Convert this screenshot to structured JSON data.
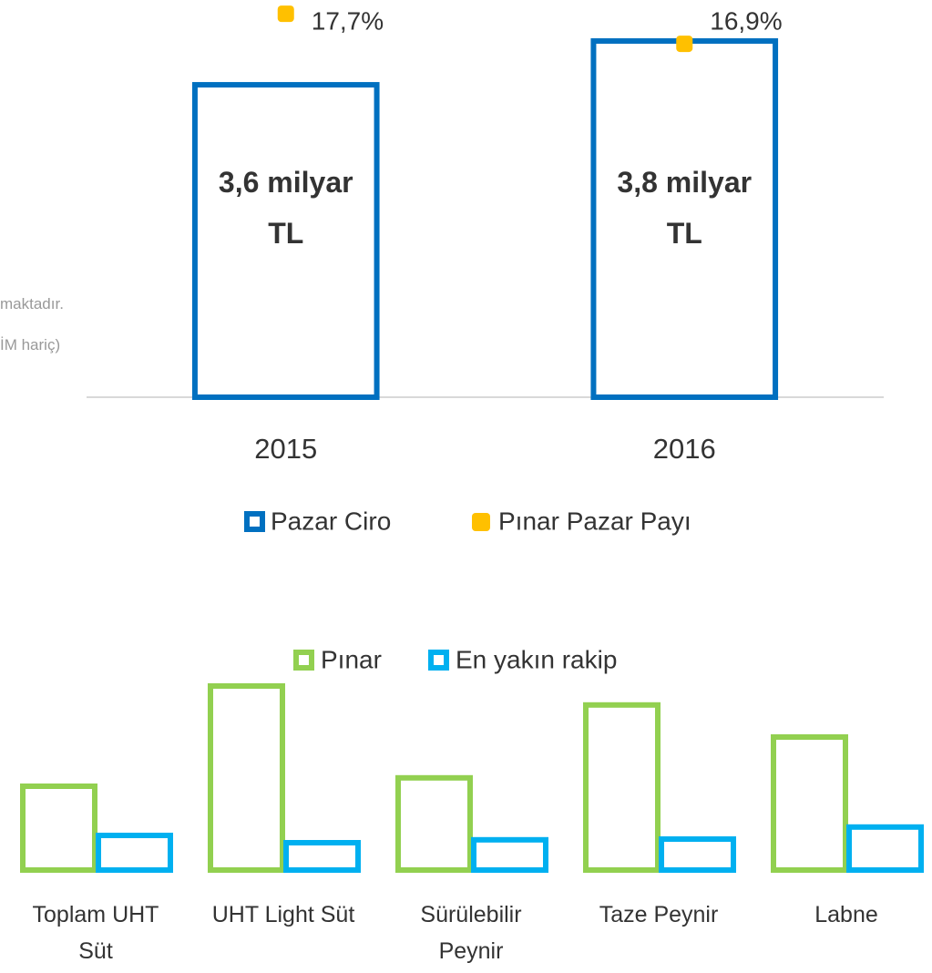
{
  "fragments": [
    "maktadır.",
    "İM hariç)"
  ],
  "chart_data": [
    {
      "type": "bar",
      "categories": [
        "2015",
        "2016"
      ],
      "series": [
        {
          "name": "Pazar Ciro",
          "color": "#0070c0",
          "values": [
            3.6,
            3.8
          ],
          "value_labels": [
            "3,6 milyar TL",
            "3,8 milyar TL"
          ]
        },
        {
          "name": "Pınar Pazar Payı",
          "type": "scatter",
          "axis": "y2",
          "color": "#ffc000",
          "values": [
            17.7,
            16.9
          ],
          "value_labels": [
            "17,7%",
            "16,9%"
          ]
        }
      ],
      "ylim": [
        2.16,
        3.9
      ],
      "y2lim": [
        7.49,
        17.63
      ]
    },
    {
      "type": "bar",
      "categories": [
        "Toplam UHT Süt",
        "UHT Light Süt",
        "Sürülebilir Peynir",
        "Taze Peynir",
        "Labne"
      ],
      "series": [
        {
          "name": "Pınar",
          "color": "#92d050",
          "values": [
            24.5,
            52,
            26.8,
            46.8,
            38
          ]
        },
        {
          "name": "En yakın rakip",
          "color": "#00b0f0",
          "values": [
            11,
            9,
            9.8,
            10,
            13.3
          ]
        }
      ],
      "ylim": [
        0,
        55
      ]
    }
  ]
}
